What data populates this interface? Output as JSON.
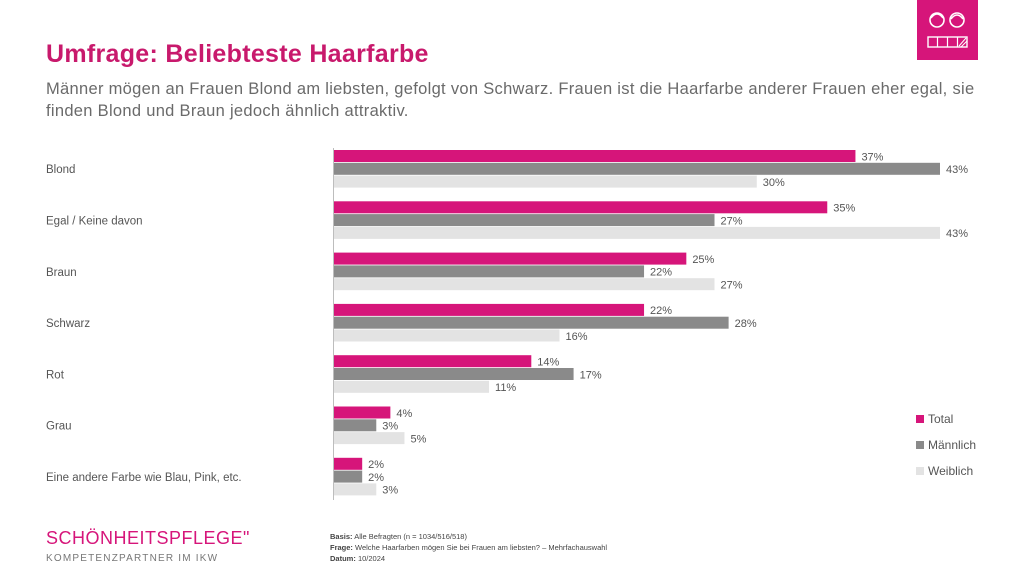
{
  "header": {
    "title": "Umfrage: Beliebteste Haarfarbe",
    "subtitle": "Männer mögen an Frauen Blond am liebsten, gefolgt von Schwarz. Frauen ist die Haarfarbe anderer Frauen eher egal, sie finden Blond und Braun jedoch ähnlich attraktiv."
  },
  "chart_data": {
    "type": "bar",
    "orientation": "horizontal",
    "categories": [
      "Blond",
      "Egal / Keine davon",
      "Braun",
      "Schwarz",
      "Rot",
      "Grau",
      "Eine andere Farbe wie Blau, Pink, etc."
    ],
    "series": [
      {
        "name": "Total",
        "color": "#d6157a",
        "values": [
          37,
          35,
          25,
          22,
          14,
          4,
          2
        ]
      },
      {
        "name": "Männlich",
        "color": "#8a8a8a",
        "values": [
          43,
          27,
          22,
          28,
          17,
          3,
          2
        ]
      },
      {
        "name": "Weiblich",
        "color": "#e3e3e3",
        "values": [
          30,
          43,
          27,
          16,
          11,
          5,
          3
        ]
      }
    ],
    "value_suffix": "%",
    "xlim": [
      0,
      43
    ],
    "legend_position": "bottom-right",
    "grid": false
  },
  "footer": {
    "logo": "SCHÖNHEITSPFLEGE\"",
    "logo_sub": "KOMPETENZPARTNER IM IKW",
    "basis_label": "Basis:",
    "basis_text": "Alle Befragten (n = 1034/516/518)",
    "frage_label": "Frage:",
    "frage_text": "Welche Haarfarben mögen Sie bei Frauen am liebsten? – Mehrfachauswahl",
    "datum_label": "Datum:",
    "datum_text": "10/2024"
  },
  "icons": {
    "badge": "people-and-hair-swatch-icon"
  }
}
